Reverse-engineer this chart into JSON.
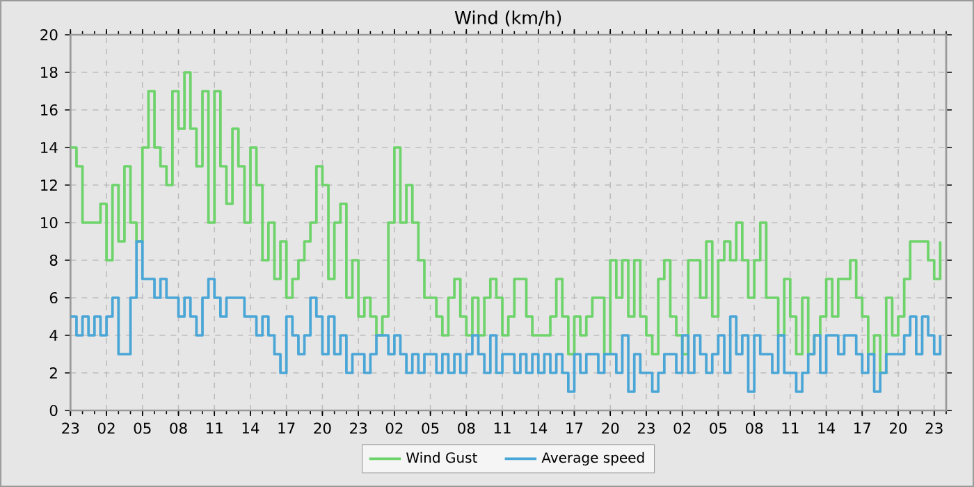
{
  "chart_data": {
    "type": "step",
    "title": "Wind (km/h)",
    "categories": [
      "23",
      null,
      null,
      null,
      null,
      null,
      "02",
      null,
      null,
      null,
      null,
      null,
      "05",
      null,
      null,
      null,
      null,
      null,
      "08",
      null,
      null,
      null,
      null,
      null,
      "11",
      null,
      null,
      null,
      null,
      null,
      "14",
      null,
      null,
      null,
      null,
      null,
      "17",
      null,
      null,
      null,
      null,
      null,
      "20",
      null,
      null,
      null,
      null,
      null,
      "23",
      null,
      null,
      null,
      null,
      null,
      "02",
      null,
      null,
      null,
      null,
      null,
      "05",
      null,
      null,
      null,
      null,
      null,
      "08",
      null,
      null,
      null,
      null,
      null,
      "11",
      null,
      null,
      null,
      null,
      null,
      "14",
      null,
      null,
      null,
      null,
      null,
      "17",
      null,
      null,
      null,
      null,
      null,
      "20",
      null,
      null,
      null,
      null,
      null,
      "23",
      null,
      null,
      null,
      null,
      null,
      "02",
      null,
      null,
      null,
      null,
      null,
      "05",
      null,
      null,
      null,
      null,
      null,
      "08",
      null,
      null,
      null,
      null,
      null,
      "11",
      null,
      null,
      null,
      null,
      null,
      "14",
      null,
      null,
      null,
      null,
      null,
      "17",
      null,
      null,
      null,
      null,
      null,
      "20",
      null,
      null,
      null,
      null,
      null,
      "23",
      null
    ],
    "ylim": [
      0,
      20
    ],
    "yticks": [
      0,
      2,
      4,
      6,
      8,
      10,
      12,
      14,
      16,
      18,
      20
    ],
    "grid": true,
    "legend": "bottom",
    "marker": "none",
    "line_style": "solid",
    "series": [
      {
        "name": "Wind Gust",
        "color": "#6dd36a",
        "values": [
          14,
          13,
          10,
          10,
          10,
          11,
          8,
          12,
          9,
          13,
          10,
          9,
          14,
          17,
          14,
          13,
          12,
          17,
          15,
          18,
          15,
          13,
          17,
          10,
          17,
          13,
          11,
          15,
          13,
          10,
          14,
          12,
          8,
          10,
          7,
          9,
          6,
          7,
          8,
          9,
          10,
          13,
          12,
          7,
          10,
          11,
          6,
          8,
          5,
          6,
          5,
          4,
          5,
          10,
          14,
          10,
          12,
          10,
          8,
          6,
          6,
          5,
          4,
          6,
          7,
          5,
          4,
          6,
          4,
          6,
          7,
          6,
          4,
          5,
          7,
          7,
          5,
          4,
          4,
          4,
          5,
          7,
          5,
          3,
          5,
          4,
          5,
          6,
          6,
          3,
          8,
          6,
          8,
          5,
          8,
          5,
          4,
          3,
          7,
          8,
          5,
          4,
          3,
          8,
          8,
          6,
          9,
          5,
          8,
          9,
          8,
          10,
          8,
          6,
          8,
          10,
          6,
          6,
          4,
          7,
          5,
          3,
          6,
          3,
          4,
          5,
          7,
          5,
          7,
          7,
          8,
          6,
          5,
          3,
          4,
          2,
          6,
          4,
          5,
          7,
          9,
          9,
          9,
          8,
          7,
          9
        ]
      },
      {
        "name": "Average speed",
        "color": "#4aa6d6",
        "values": [
          5,
          4,
          5,
          4,
          5,
          4,
          5,
          6,
          3,
          3,
          6,
          9,
          7,
          7,
          6,
          7,
          6,
          6,
          5,
          6,
          5,
          4,
          6,
          7,
          6,
          5,
          6,
          6,
          6,
          5,
          5,
          4,
          5,
          4,
          3,
          2,
          5,
          4,
          3,
          4,
          6,
          5,
          3,
          5,
          3,
          4,
          2,
          3,
          3,
          2,
          3,
          4,
          4,
          3,
          4,
          3,
          2,
          3,
          2,
          3,
          3,
          2,
          3,
          2,
          3,
          2,
          3,
          4,
          3,
          2,
          4,
          2,
          3,
          3,
          2,
          3,
          2,
          3,
          2,
          3,
          2,
          3,
          2,
          1,
          3,
          2,
          3,
          3,
          2,
          3,
          3,
          2,
          4,
          1,
          3,
          2,
          2,
          1,
          2,
          3,
          3,
          2,
          4,
          2,
          4,
          3,
          2,
          3,
          4,
          2,
          5,
          3,
          4,
          1,
          4,
          3,
          3,
          2,
          4,
          2,
          2,
          1,
          2,
          3,
          4,
          2,
          4,
          4,
          3,
          4,
          4,
          3,
          2,
          3,
          1,
          2,
          3,
          3,
          3,
          4,
          5,
          3,
          5,
          4,
          3,
          4
        ]
      }
    ]
  }
}
